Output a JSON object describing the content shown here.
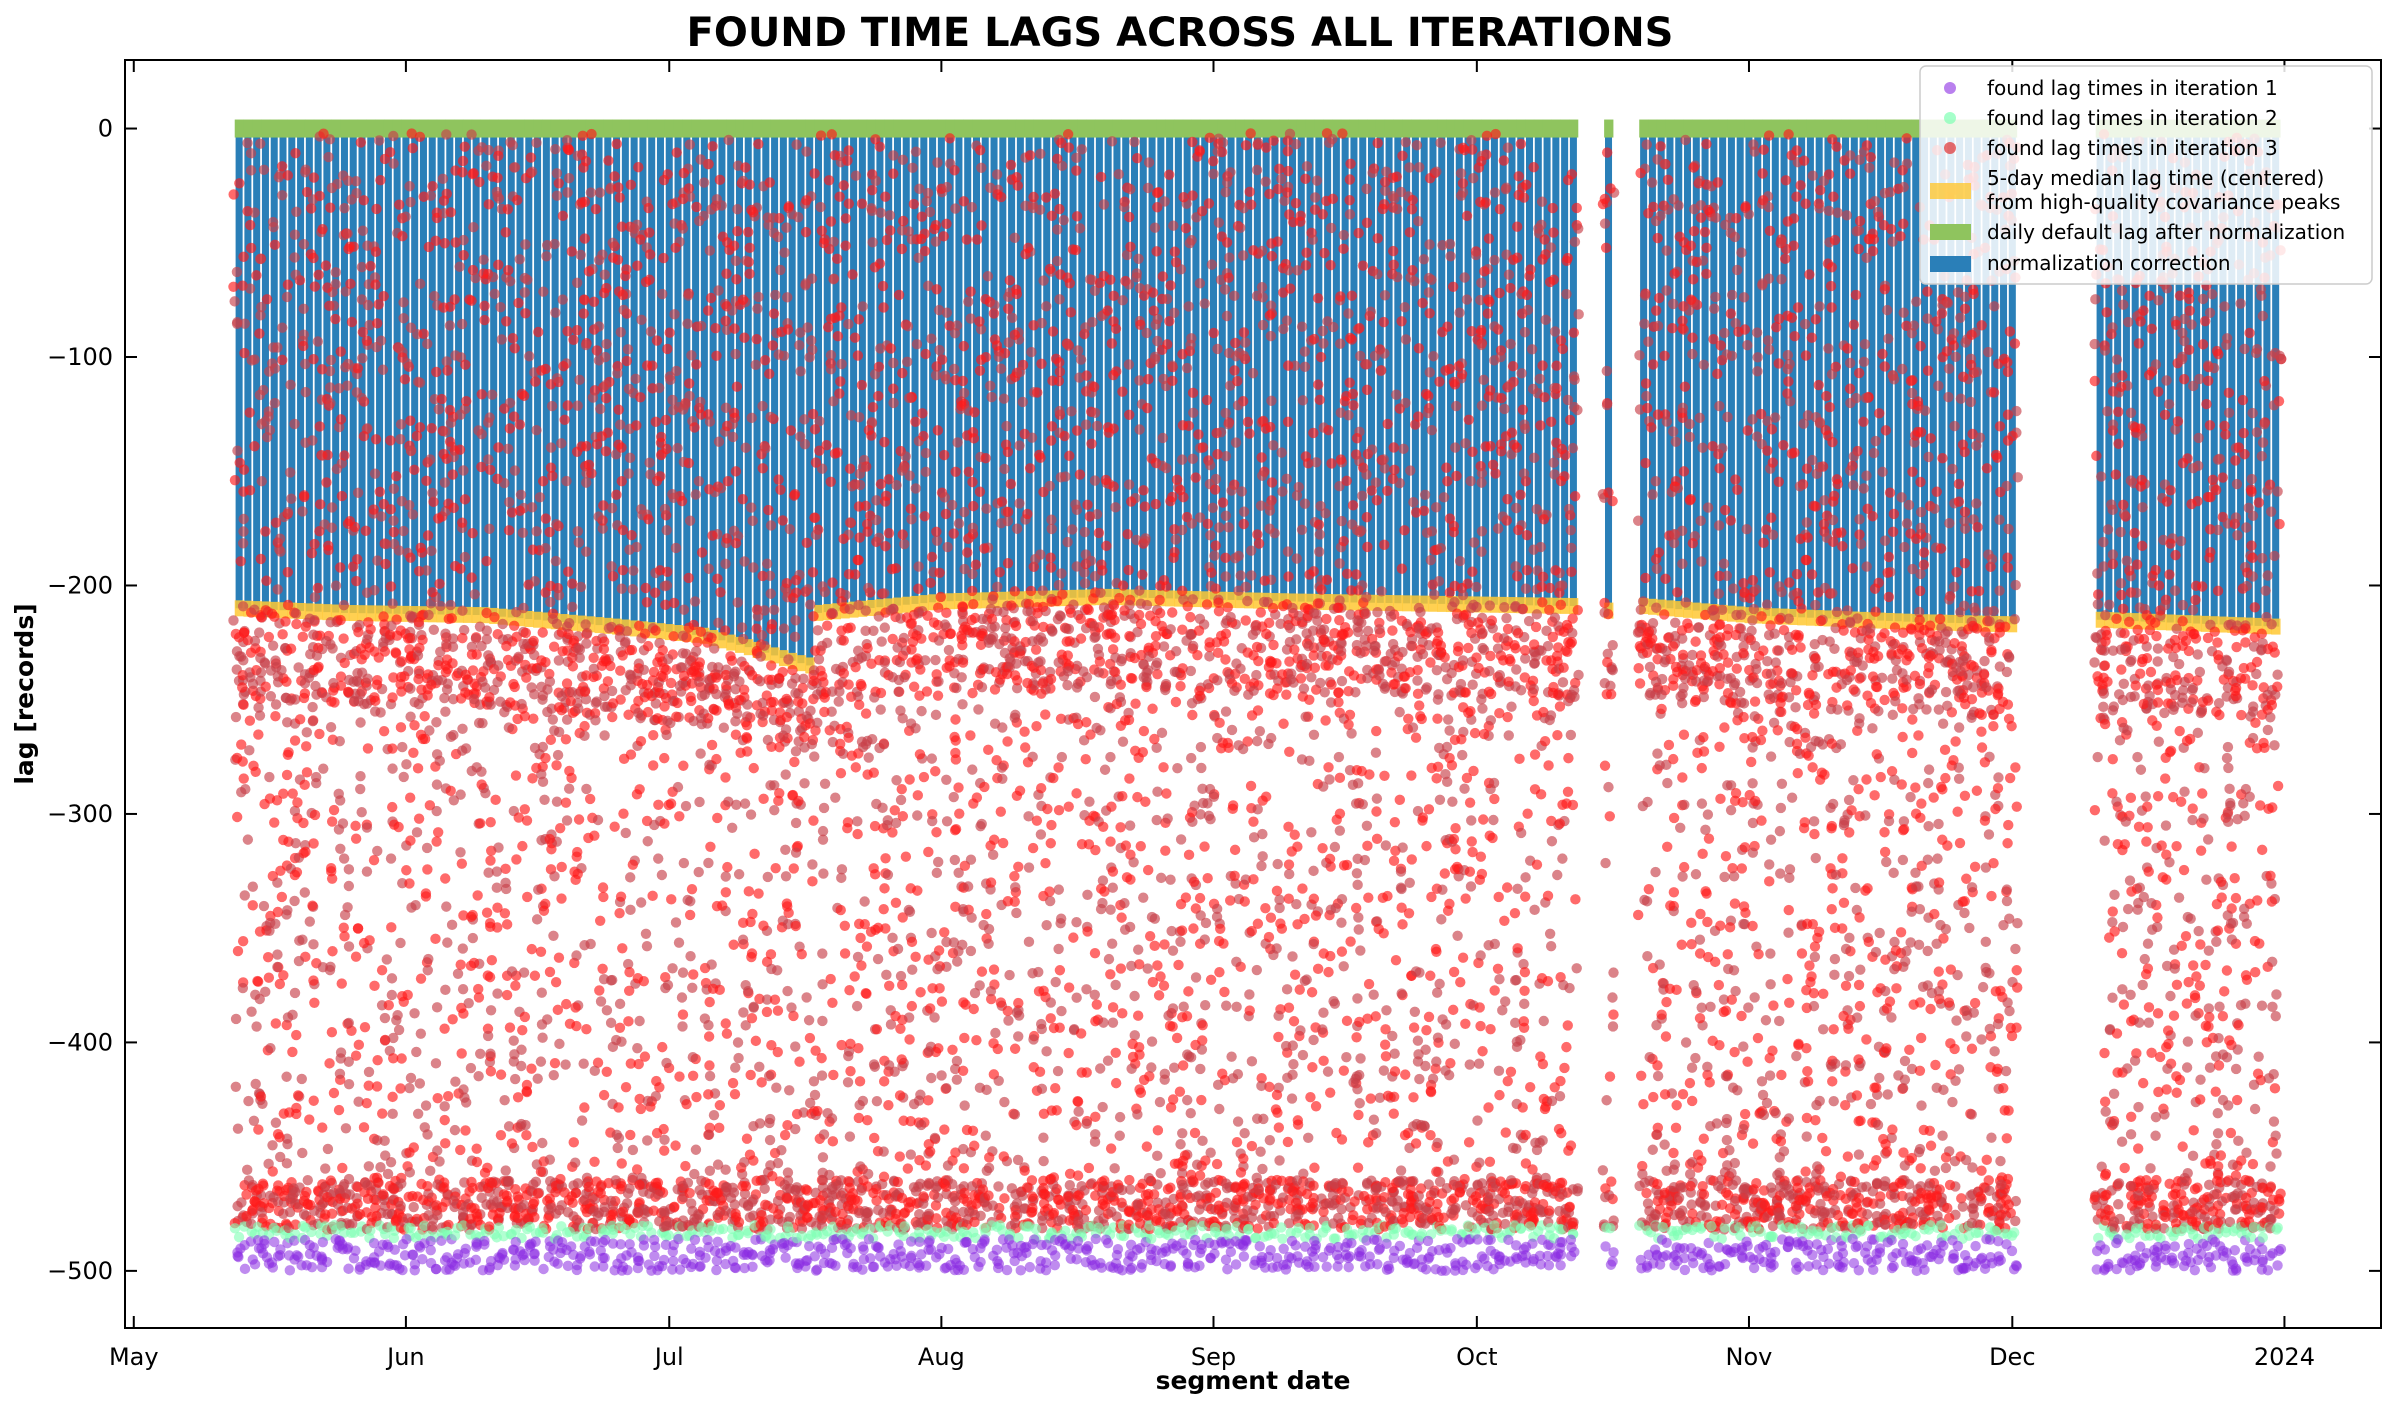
{
  "chart_data": {
    "type": "scatter",
    "title": "FOUND TIME LAGS ACROSS ALL ITERATIONS",
    "xlabel": "segment date",
    "ylabel": "lag  [records]",
    "xlim": [
      "2023-04-30",
      "2024-01-12"
    ],
    "ylim": [
      -525,
      30
    ],
    "grid": false,
    "legend_position": "top-right",
    "x_ticks": [
      {
        "date": "2023-05-01",
        "label": "May"
      },
      {
        "date": "2023-06-01",
        "label": "Jun"
      },
      {
        "date": "2023-07-01",
        "label": "Jul"
      },
      {
        "date": "2023-08-01",
        "label": "Aug"
      },
      {
        "date": "2023-09-01",
        "label": "Sep"
      },
      {
        "date": "2023-10-01",
        "label": "Oct"
      },
      {
        "date": "2023-11-01",
        "label": "Nov"
      },
      {
        "date": "2023-12-01",
        "label": "Dec"
      },
      {
        "date": "2024-01-01",
        "label": "2024"
      }
    ],
    "y_ticks": [
      {
        "value": 0,
        "label": "0"
      },
      {
        "value": -100,
        "label": "−100"
      },
      {
        "value": -200,
        "label": "−200"
      },
      {
        "value": -300,
        "label": "−300"
      },
      {
        "value": -400,
        "label": "−400"
      },
      {
        "value": -500,
        "label": "−500"
      }
    ],
    "data_periods": [
      {
        "start": "2023-05-13",
        "end": "2023-10-12"
      },
      {
        "start": "2023-10-16",
        "end": "2023-10-16"
      },
      {
        "start": "2023-10-20",
        "end": "2023-12-01"
      },
      {
        "start": "2023-12-11",
        "end": "2023-12-31"
      }
    ],
    "series": [
      {
        "name": "found lag times in iteration 1",
        "kind": "scatter",
        "color": "#8a2be2",
        "lag_range": [
          -500,
          -486
        ],
        "points_per_day": 4
      },
      {
        "name": "found lag times in iteration 2",
        "kind": "scatter",
        "color": "#7fffb4",
        "lag_range": [
          -486,
          -480
        ],
        "points_per_day": 2
      },
      {
        "name": "found lag times in iteration 3",
        "kind": "scatter",
        "color": "#e03030",
        "lag_range": [
          -482,
          -2
        ],
        "points_per_day": 48
      },
      {
        "name": "5-day median lag time (centered)\nfrom high-quality covariance peaks",
        "kind": "bar",
        "color": "#ffc833",
        "values": [
          [
            "2023-05-13",
            -210
          ],
          [
            "2023-05-25",
            -212
          ],
          [
            "2023-06-10",
            -213
          ],
          [
            "2023-06-25",
            -218
          ],
          [
            "2023-07-05",
            -222
          ],
          [
            "2023-07-10",
            -227
          ],
          [
            "2023-07-15",
            -233
          ],
          [
            "2023-07-17",
            -235
          ],
          [
            "2023-07-18",
            -212
          ],
          [
            "2023-08-01",
            -207
          ],
          [
            "2023-08-20",
            -205
          ],
          [
            "2023-09-10",
            -207
          ],
          [
            "2023-10-12",
            -209
          ],
          [
            "2023-10-16",
            -211
          ],
          [
            "2023-10-20",
            -209
          ],
          [
            "2023-11-01",
            -213
          ],
          [
            "2023-11-20",
            -216
          ],
          [
            "2023-12-01",
            -217
          ],
          [
            "2023-12-11",
            -215
          ],
          [
            "2023-12-31",
            -218
          ]
        ]
      },
      {
        "name": "daily default lag after normalization",
        "kind": "bar",
        "color": "#8fc45e",
        "value": 0
      },
      {
        "name": "normalization correction",
        "kind": "bar",
        "color": "#2a7fb8",
        "note_from_to": "default lag to median lag"
      }
    ]
  }
}
